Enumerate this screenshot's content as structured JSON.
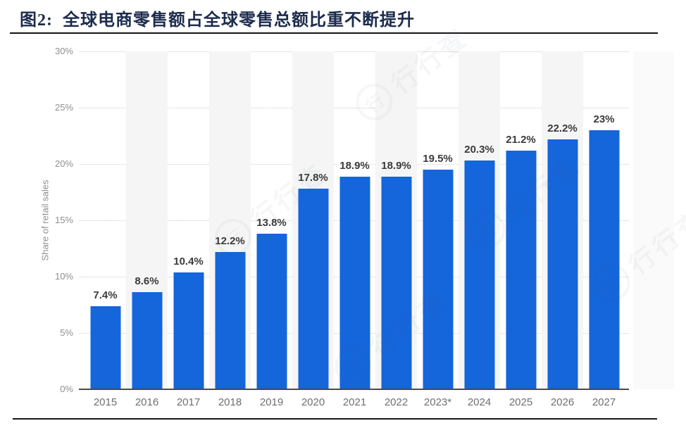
{
  "header": {
    "figure_label": "图2:",
    "title": "全球电商零售额占全球零售总额比重不断提升"
  },
  "chart_data": {
    "type": "bar",
    "title": "全球电商零售额占全球零售总额比重不断提升",
    "xlabel": "",
    "ylabel": "Share of retail sales",
    "categories": [
      "2015",
      "2016",
      "2017",
      "2018",
      "2019",
      "2020",
      "2021",
      "2022",
      "2023*",
      "2024",
      "2025",
      "2026",
      "2027"
    ],
    "values": [
      7.4,
      8.6,
      10.4,
      12.2,
      13.8,
      17.8,
      18.9,
      18.9,
      19.5,
      20.3,
      21.2,
      22.2,
      23
    ],
    "value_labels": [
      "7.4%",
      "8.6%",
      "10.4%",
      "12.2%",
      "13.8%",
      "17.8%",
      "18.9%",
      "18.9%",
      "19.5%",
      "20.3%",
      "21.2%",
      "22.2%",
      "23%"
    ],
    "unit": "%",
    "ylim": [
      0,
      30
    ],
    "yticks": [
      0,
      5,
      10,
      15,
      20,
      25,
      30
    ],
    "ytick_labels": [
      "0%",
      "5%",
      "10%",
      "15%",
      "20%",
      "25%",
      "30%"
    ],
    "grid": "horizontal-dotted",
    "legend": "none",
    "bar_color": "#1565db",
    "band_color": "#f5f5f5",
    "label_color": "#3b3b3b",
    "axis_text_color": "#8f8f8f"
  },
  "watermark": {
    "text": "行行查",
    "logo_glyph": "行"
  }
}
